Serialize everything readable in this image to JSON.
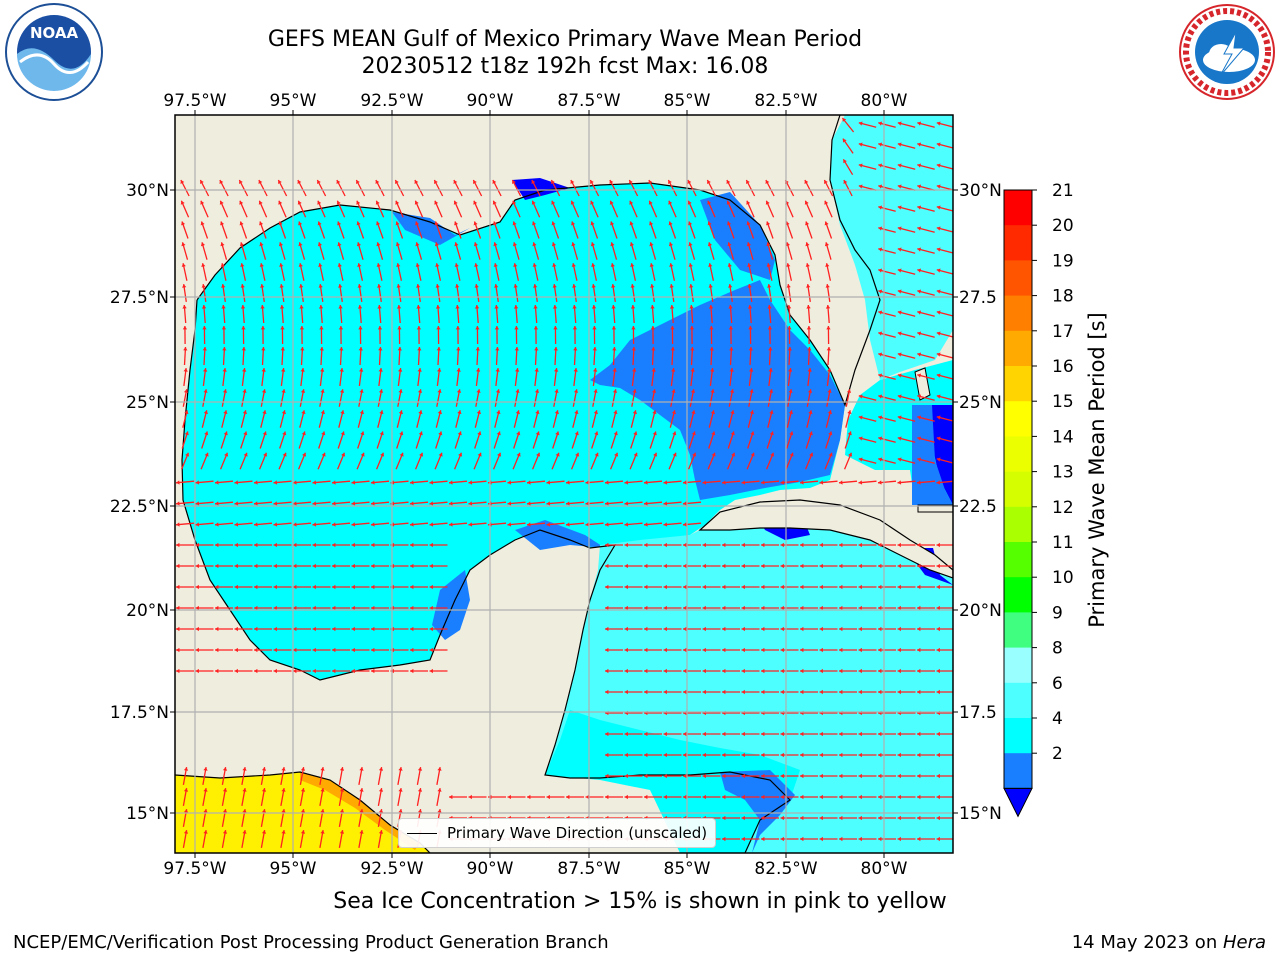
{
  "header": {
    "title_line1": "GEFS MEAN Gulf of Mexico Primary Wave Mean Period",
    "title_line2": "20230512 t18z 192h fcst   Max: 16.08"
  },
  "logos": {
    "left": "noaa-logo",
    "right": "nws-logo"
  },
  "map": {
    "lon_ticks": [
      "97.5°W",
      "95°W",
      "92.5°W",
      "90°W",
      "87.5°W",
      "85°W",
      "82.5°W",
      "80°W"
    ],
    "lat_ticks_left": [
      "30°N",
      "27.5°N",
      "25°N",
      "22.5°N",
      "20°N",
      "17.5°N",
      "15°N"
    ],
    "lat_ticks_right": [
      "30°N",
      "27.5",
      "25°N",
      "22.5",
      "20°N",
      "17.5",
      "15°N"
    ],
    "legend_label": "Primary Wave Direction (unscaled)",
    "colors": {
      "land": "#efedde",
      "ocean_light": "#00ffff",
      "ocean_mid": "#4dffff",
      "ocean_dark": "#1a7fff",
      "ocean_deep": "#0000ff",
      "arrows": "#ff0000",
      "ice": "#ffef00"
    }
  },
  "colorbar": {
    "label": "Primary Wave Mean Period [s]",
    "ticks": [
      "21",
      "20",
      "19",
      "18",
      "17",
      "16",
      "15",
      "14",
      "13",
      "12",
      "11",
      "10",
      "9",
      "8",
      "6",
      "4",
      "2"
    ],
    "colors": [
      "#ff0000",
      "#ff2a00",
      "#ff5500",
      "#ff8000",
      "#ffaa00",
      "#ffd400",
      "#ffff00",
      "#ecff00",
      "#d5ff00",
      "#aaff00",
      "#55ff00",
      "#00ff00",
      "#40ff80",
      "#99ffff",
      "#4dffff",
      "#00ffff",
      "#1a7fff",
      "#0000ff"
    ]
  },
  "notes": {
    "ice": "Sea Ice Concentration > 15% is shown in pink to yellow"
  },
  "footer": {
    "left": "NCEP/EMC/Verification Post Processing Product Generation Branch",
    "right_prefix": "14 May 2023 on ",
    "right_host": "Hera"
  }
}
